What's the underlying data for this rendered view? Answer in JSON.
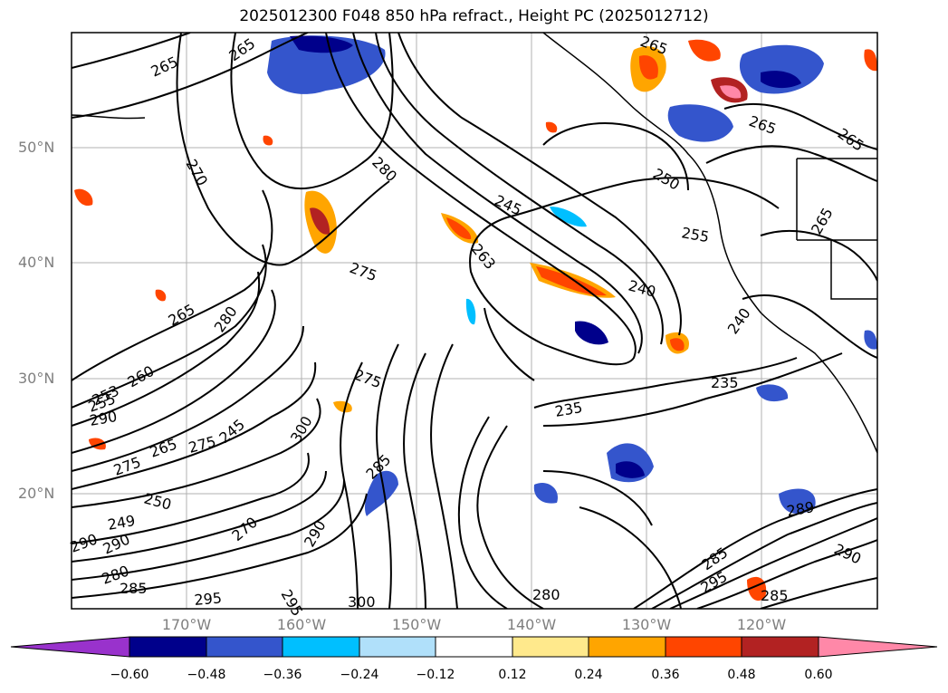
{
  "title": "2025012300 F048 850 hPa refract., Height PC (2025012712)",
  "map": {
    "lat_labels": [
      "50°N",
      "40°N",
      "30°N",
      "20°N"
    ],
    "lon_labels": [
      "170°W",
      "160°W",
      "150°W",
      "140°W",
      "130°W",
      "120°W"
    ],
    "contour_labels": [
      "265",
      "265",
      "265",
      "265",
      "265",
      "270",
      "280",
      "275",
      "265",
      "260",
      "255",
      "250",
      "245",
      "245",
      "240",
      "240",
      "235",
      "235",
      "255",
      "275",
      "275",
      "280",
      "285",
      "290",
      "290",
      "290",
      "295",
      "295",
      "300",
      "280",
      "280",
      "285",
      "290",
      "300",
      "265",
      "263",
      "250",
      "265",
      "270",
      "275",
      "285",
      "290",
      "295",
      "253",
      "249",
      "289",
      "285"
    ]
  },
  "colorbar": {
    "ticks": [
      "−0.60",
      "−0.48",
      "−0.36",
      "−0.24",
      "−0.12",
      "0.12",
      "0.24",
      "0.36",
      "0.48",
      "0.60"
    ],
    "colors": [
      "#9932cc",
      "#00008b",
      "#3455cc",
      "#00bfff",
      "#b0e0fa",
      "#ffffff",
      "#ffe98c",
      "#ffa500",
      "#ff4500",
      "#b22222",
      "#ff88a8"
    ]
  }
}
